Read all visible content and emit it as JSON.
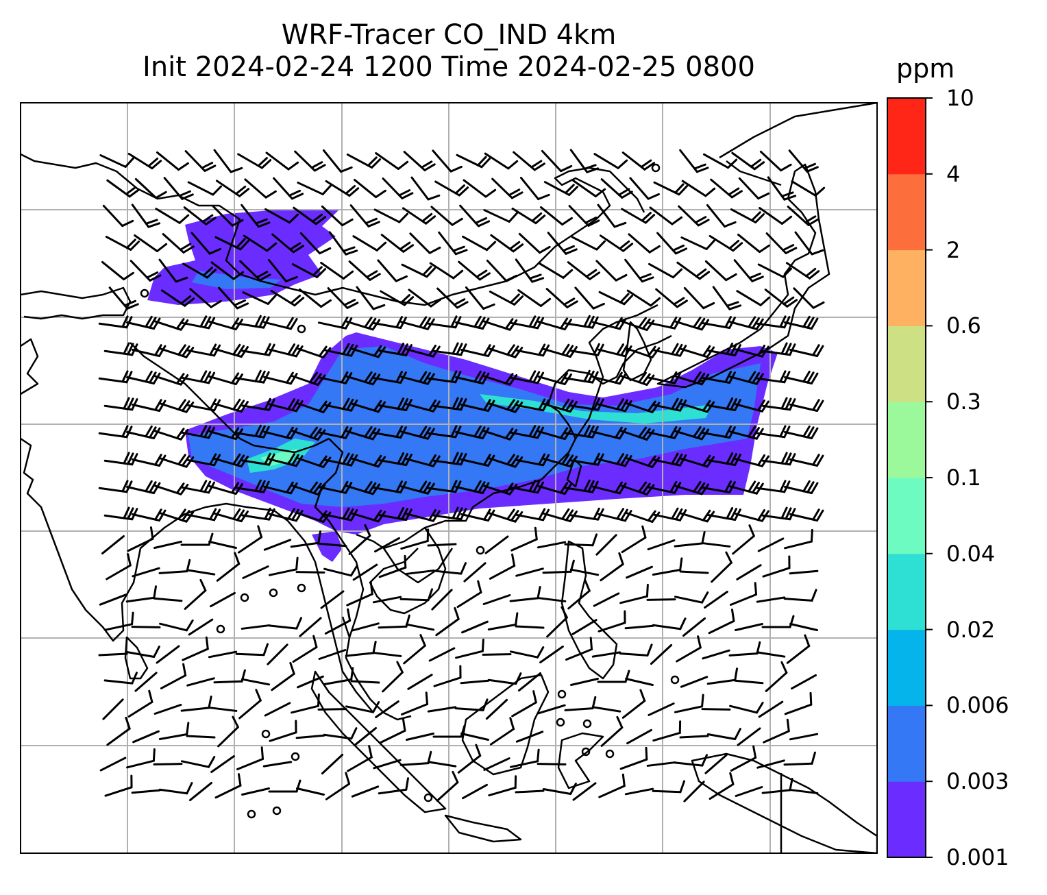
{
  "title": {
    "line1": "WRF-Tracer CO_IND 4km",
    "line2": "Init 2024-02-24 1200 Time 2024-02-25 0800"
  },
  "colorbar": {
    "unit": "ppm",
    "levels": [
      "0.001",
      "0.003",
      "0.006",
      "0.02",
      "0.04",
      "0.1",
      "0.3",
      "0.6",
      "2",
      "4",
      "10"
    ],
    "colors": [
      "#6a2cff",
      "#3478f6",
      "#04b4ea",
      "#2edfd3",
      "#6efbc2",
      "#9bf99b",
      "#cde083",
      "#fdb161",
      "#fc6f3c",
      "#ff2617"
    ]
  },
  "map": {
    "field": "CO_IND tracer concentration",
    "gridlines": true,
    "plume_colors": {
      "outer": "#6a2cff",
      "mid": "#3478f6",
      "inner": "#2edfd3",
      "core": "#6efbc2"
    },
    "features": [
      "coastlines",
      "country-borders",
      "wind-barbs",
      "calm-wind-circles"
    ]
  }
}
